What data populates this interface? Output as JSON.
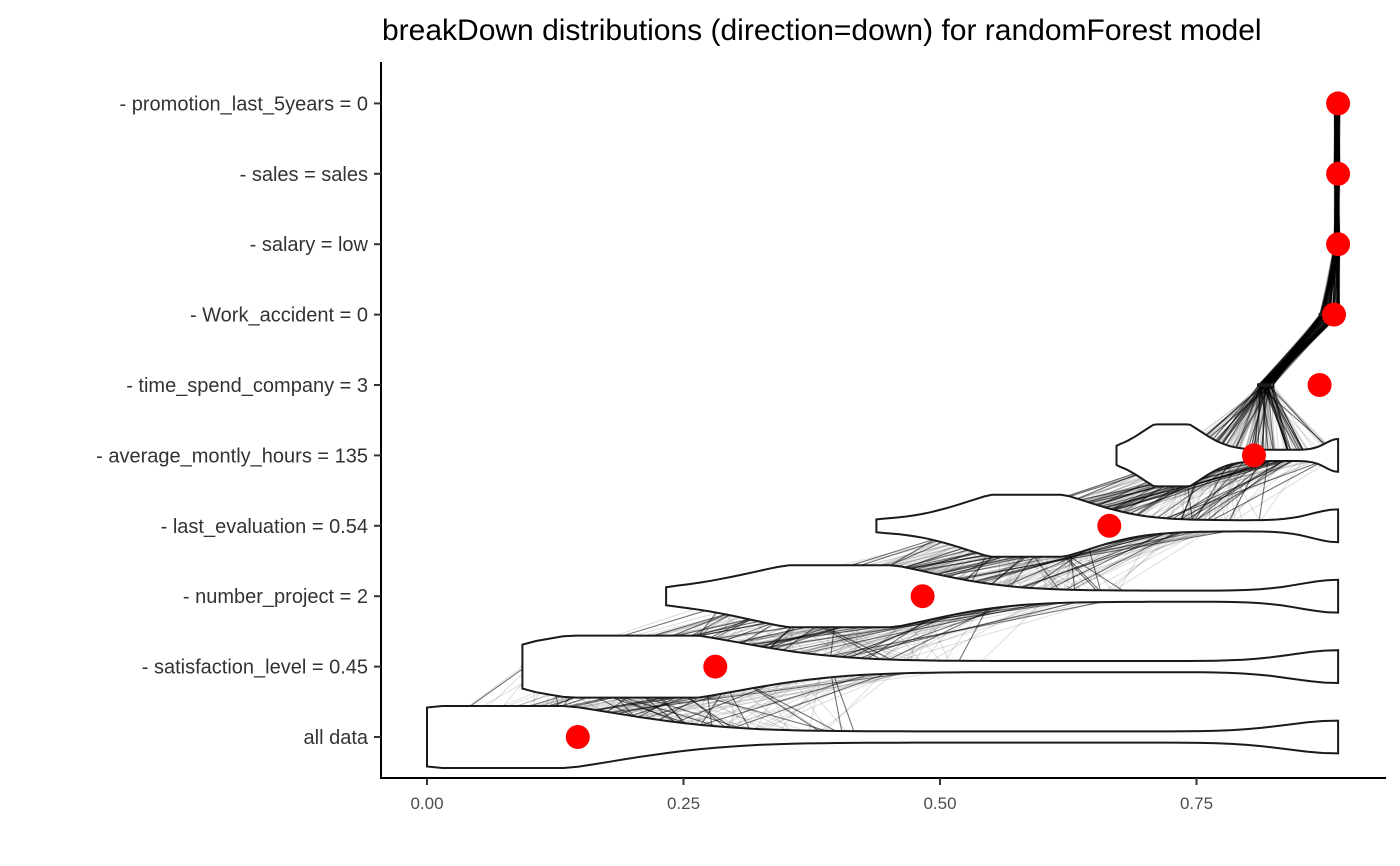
{
  "chart_data": {
    "type": "violin",
    "title": "breakDown distributions (direction=down) for randomForest model",
    "xlabel": "",
    "ylabel": "",
    "xlim": [
      0.0,
      0.93
    ],
    "x_ticks": [
      0.0,
      0.25,
      0.5,
      0.75
    ],
    "x_tick_labels": [
      "0.00",
      "0.25",
      "0.50",
      "0.75"
    ],
    "categories": [
      "all data",
      "- satisfaction_level = 0.45",
      "- number_project = 2",
      "- last_evaluation = 0.54",
      "- average_montly_hours = 135",
      "- time_spend_company = 3",
      "- Work_accident = 0",
      "- salary = low",
      "- sales = sales",
      "- promotion_last_5years = 0"
    ],
    "point_values": [
      0.147,
      0.281,
      0.483,
      0.665,
      0.806,
      0.87,
      0.884,
      0.888,
      0.888,
      0.888
    ],
    "violin_ranges": [
      [
        0.0,
        0.888
      ],
      [
        0.093,
        0.888
      ],
      [
        0.233,
        0.888
      ],
      [
        0.438,
        0.888
      ],
      [
        0.672,
        0.888
      ],
      [
        0.81,
        0.825
      ],
      [
        0.87,
        0.89
      ],
      [
        0.884,
        0.89
      ],
      [
        0.884,
        0.89
      ],
      [
        0.884,
        0.89
      ]
    ],
    "point_color": "#ff0000",
    "grid": false
  }
}
